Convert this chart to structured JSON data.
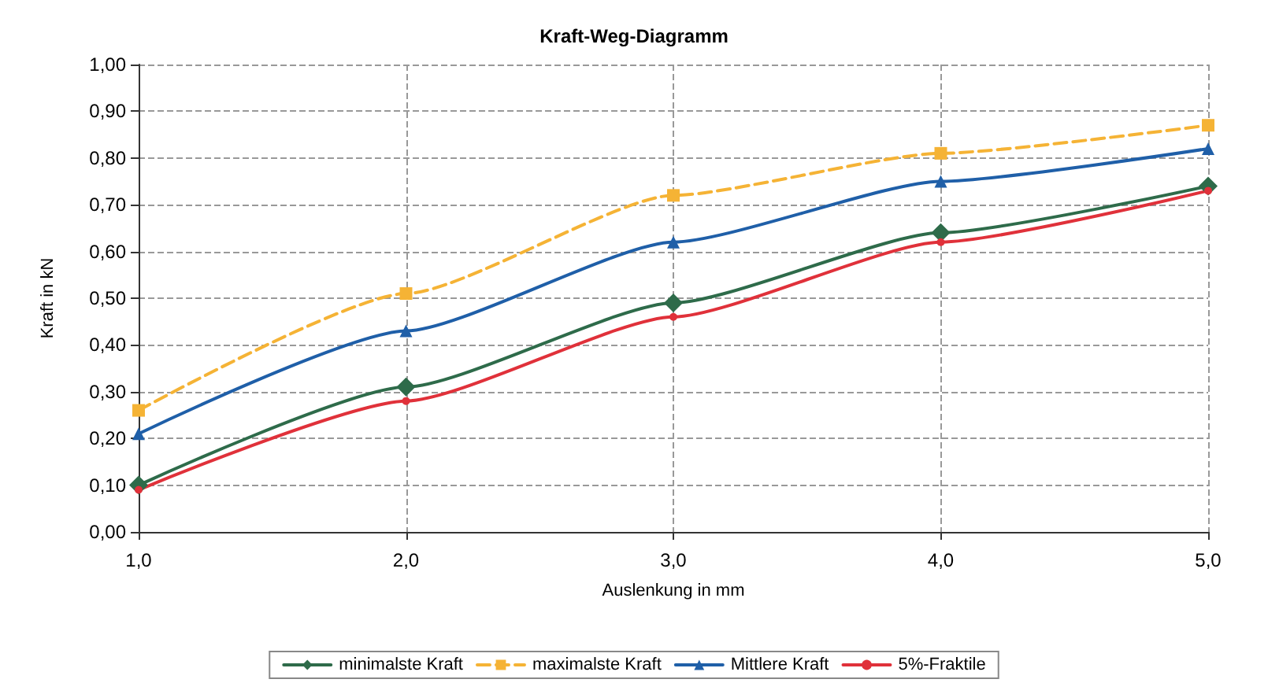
{
  "chart_data": {
    "type": "line",
    "title": "Kraft-Weg-Diagramm",
    "xlabel": "Auslenkung in mm",
    "ylabel": "Kraft in kN",
    "x": [
      1,
      2,
      3,
      4,
      5
    ],
    "xlim": [
      1,
      5
    ],
    "xticks": [
      {
        "value": 1,
        "label": "1,0"
      },
      {
        "value": 2,
        "label": "2,0"
      },
      {
        "value": 3,
        "label": "3,0"
      },
      {
        "value": 4,
        "label": "4,0"
      },
      {
        "value": 5,
        "label": "5,0"
      }
    ],
    "ylim": [
      0,
      1
    ],
    "yticks": [
      {
        "value": 0,
        "label": "0,00"
      },
      {
        "value": 0.1,
        "label": "0,10"
      },
      {
        "value": 0.2,
        "label": "0,20"
      },
      {
        "value": 0.3,
        "label": "0,30"
      },
      {
        "value": 0.4,
        "label": "0,40"
      },
      {
        "value": 0.5,
        "label": "0,50"
      },
      {
        "value": 0.6,
        "label": "0,60"
      },
      {
        "value": 0.7,
        "label": "0,70"
      },
      {
        "value": 0.8,
        "label": "0,80"
      },
      {
        "value": 0.9,
        "label": "0,90"
      },
      {
        "value": 1,
        "label": "1,00"
      }
    ],
    "grid": true,
    "legend": "bottom",
    "line_style": "solid",
    "series": [
      {
        "name": "minimalste Kraft",
        "color": "#2e6b4a",
        "marker": "diamond",
        "values": [
          0.1,
          0.31,
          0.49,
          0.64,
          0.74
        ]
      },
      {
        "name": "maximalste Kraft",
        "color": "#f5b335",
        "marker": "square",
        "line_style": "dashed",
        "values": [
          0.26,
          0.51,
          0.72,
          0.81,
          0.87
        ]
      },
      {
        "name": "Mittlere Kraft",
        "color": "#1f5fa8",
        "marker": "triangle",
        "values": [
          0.21,
          0.43,
          0.62,
          0.75,
          0.82
        ]
      },
      {
        "name": "5%-Fraktile",
        "color": "#e0313a",
        "marker": "circle",
        "values": [
          0.09,
          0.28,
          0.46,
          0.62,
          0.73
        ]
      }
    ]
  }
}
